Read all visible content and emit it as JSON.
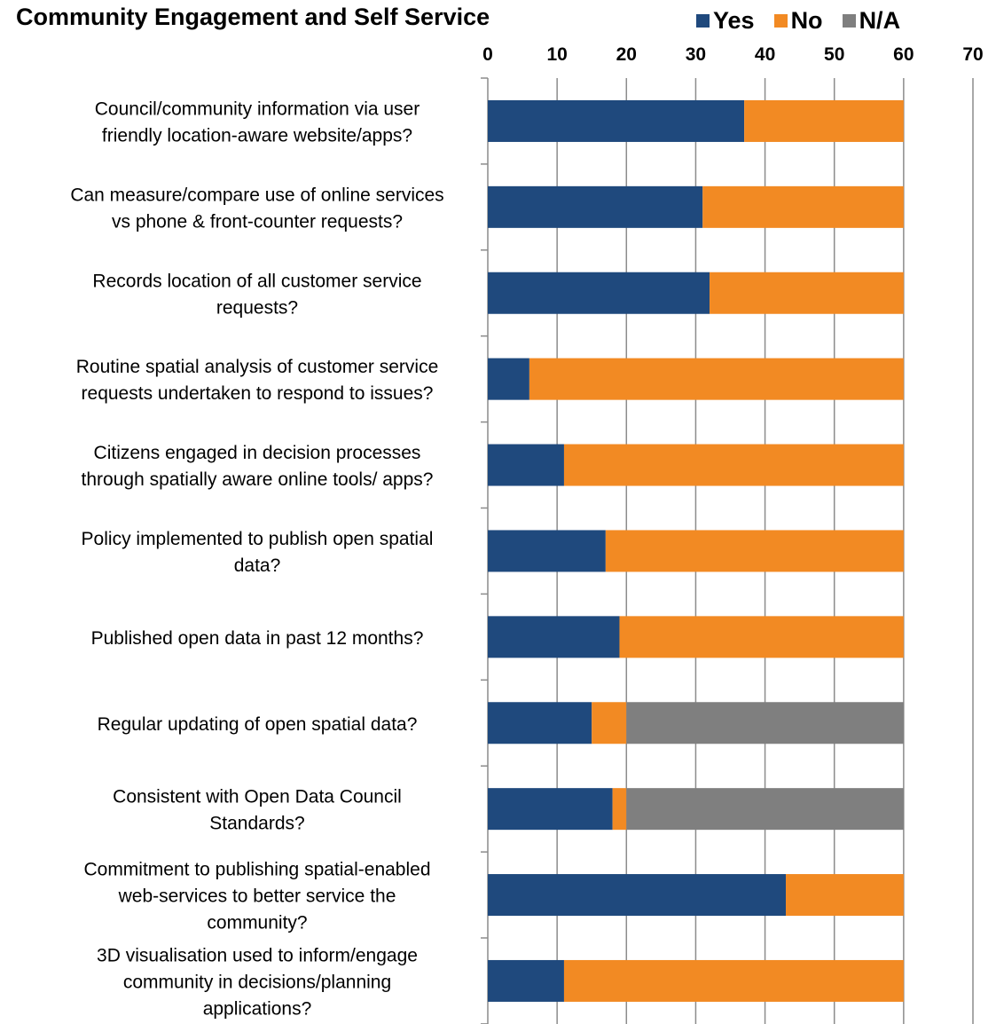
{
  "chart_data": {
    "type": "bar",
    "orientation": "horizontal",
    "stacked": true,
    "title": "Community Engagement and Self Service",
    "xlim": [
      0,
      70
    ],
    "xticks": [
      "0",
      "10",
      "20",
      "30",
      "40",
      "50",
      "60",
      "70"
    ],
    "axis_position": "top",
    "grid": true,
    "legend_position": "top-right",
    "categories": [
      [
        "Council/community information via user",
        "friendly location-aware website/apps?"
      ],
      [
        "Can measure/compare use of online services",
        "vs phone & front-counter requests?"
      ],
      [
        "Records location of all customer service",
        "requests?"
      ],
      [
        "Routine spatial analysis of customer service",
        "requests undertaken to respond to issues?"
      ],
      [
        "Citizens engaged in decision processes",
        "through spatially aware online tools/ apps?"
      ],
      [
        "Policy implemented to publish open spatial",
        "data?"
      ],
      [
        "Published open data in past 12 months?"
      ],
      [
        "Regular updating of open spatial data?"
      ],
      [
        "Consistent with Open Data Council",
        "Standards?"
      ],
      [
        "Commitment to publishing spatial-enabled",
        "web-services to better service the",
        "community?"
      ],
      [
        "3D visualisation used to inform/engage",
        "community in decisions/planning",
        "applications?"
      ]
    ],
    "series": [
      {
        "name": "Yes",
        "color": "#1f497d",
        "values": [
          37,
          31,
          32,
          6,
          11,
          17,
          19,
          15,
          18,
          43,
          11
        ]
      },
      {
        "name": "No",
        "color": "#f28a23",
        "values": [
          23,
          29,
          28,
          54,
          49,
          43,
          41,
          5,
          2,
          17,
          49
        ]
      },
      {
        "name": "N/A",
        "color": "#7f7f7f",
        "values": [
          0,
          0,
          0,
          0,
          0,
          0,
          0,
          40,
          40,
          0,
          0
        ]
      }
    ]
  }
}
